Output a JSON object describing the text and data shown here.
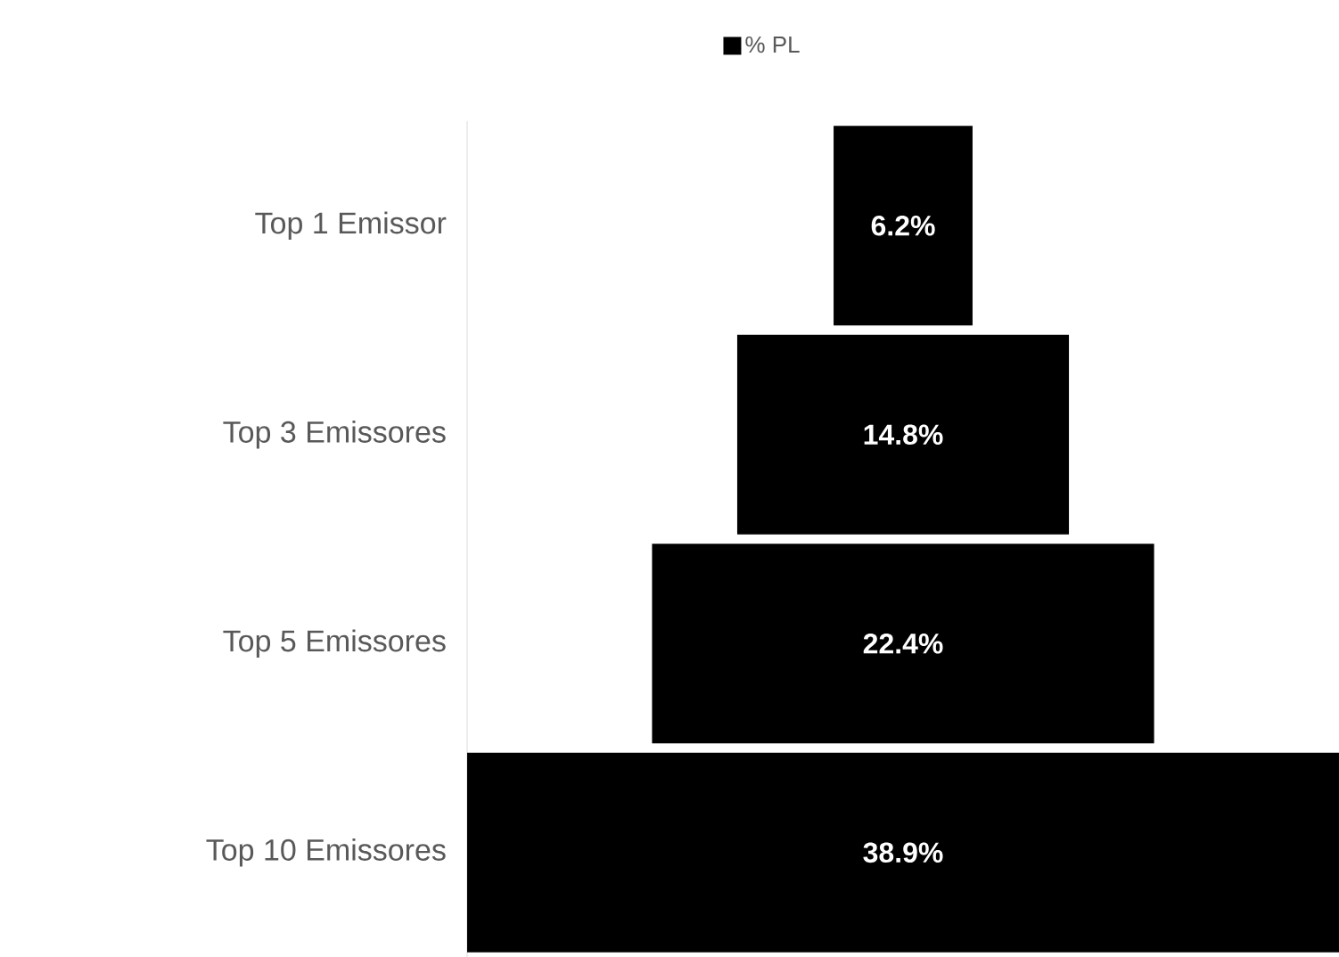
{
  "chart_data": {
    "type": "other",
    "categories": [
      "Top 1 Emissor",
      "Top 3 Emissores",
      "Top 5 Emissores",
      "Top 10 Emissores"
    ],
    "series": [
      {
        "name": "% PL",
        "color": "#000000",
        "values": [
          6.2,
          14.8,
          22.4,
          38.9
        ],
        "value_labels": [
          "6.2%",
          "14.8%",
          "22.4%",
          "38.9%"
        ]
      }
    ],
    "legend": "top"
  }
}
